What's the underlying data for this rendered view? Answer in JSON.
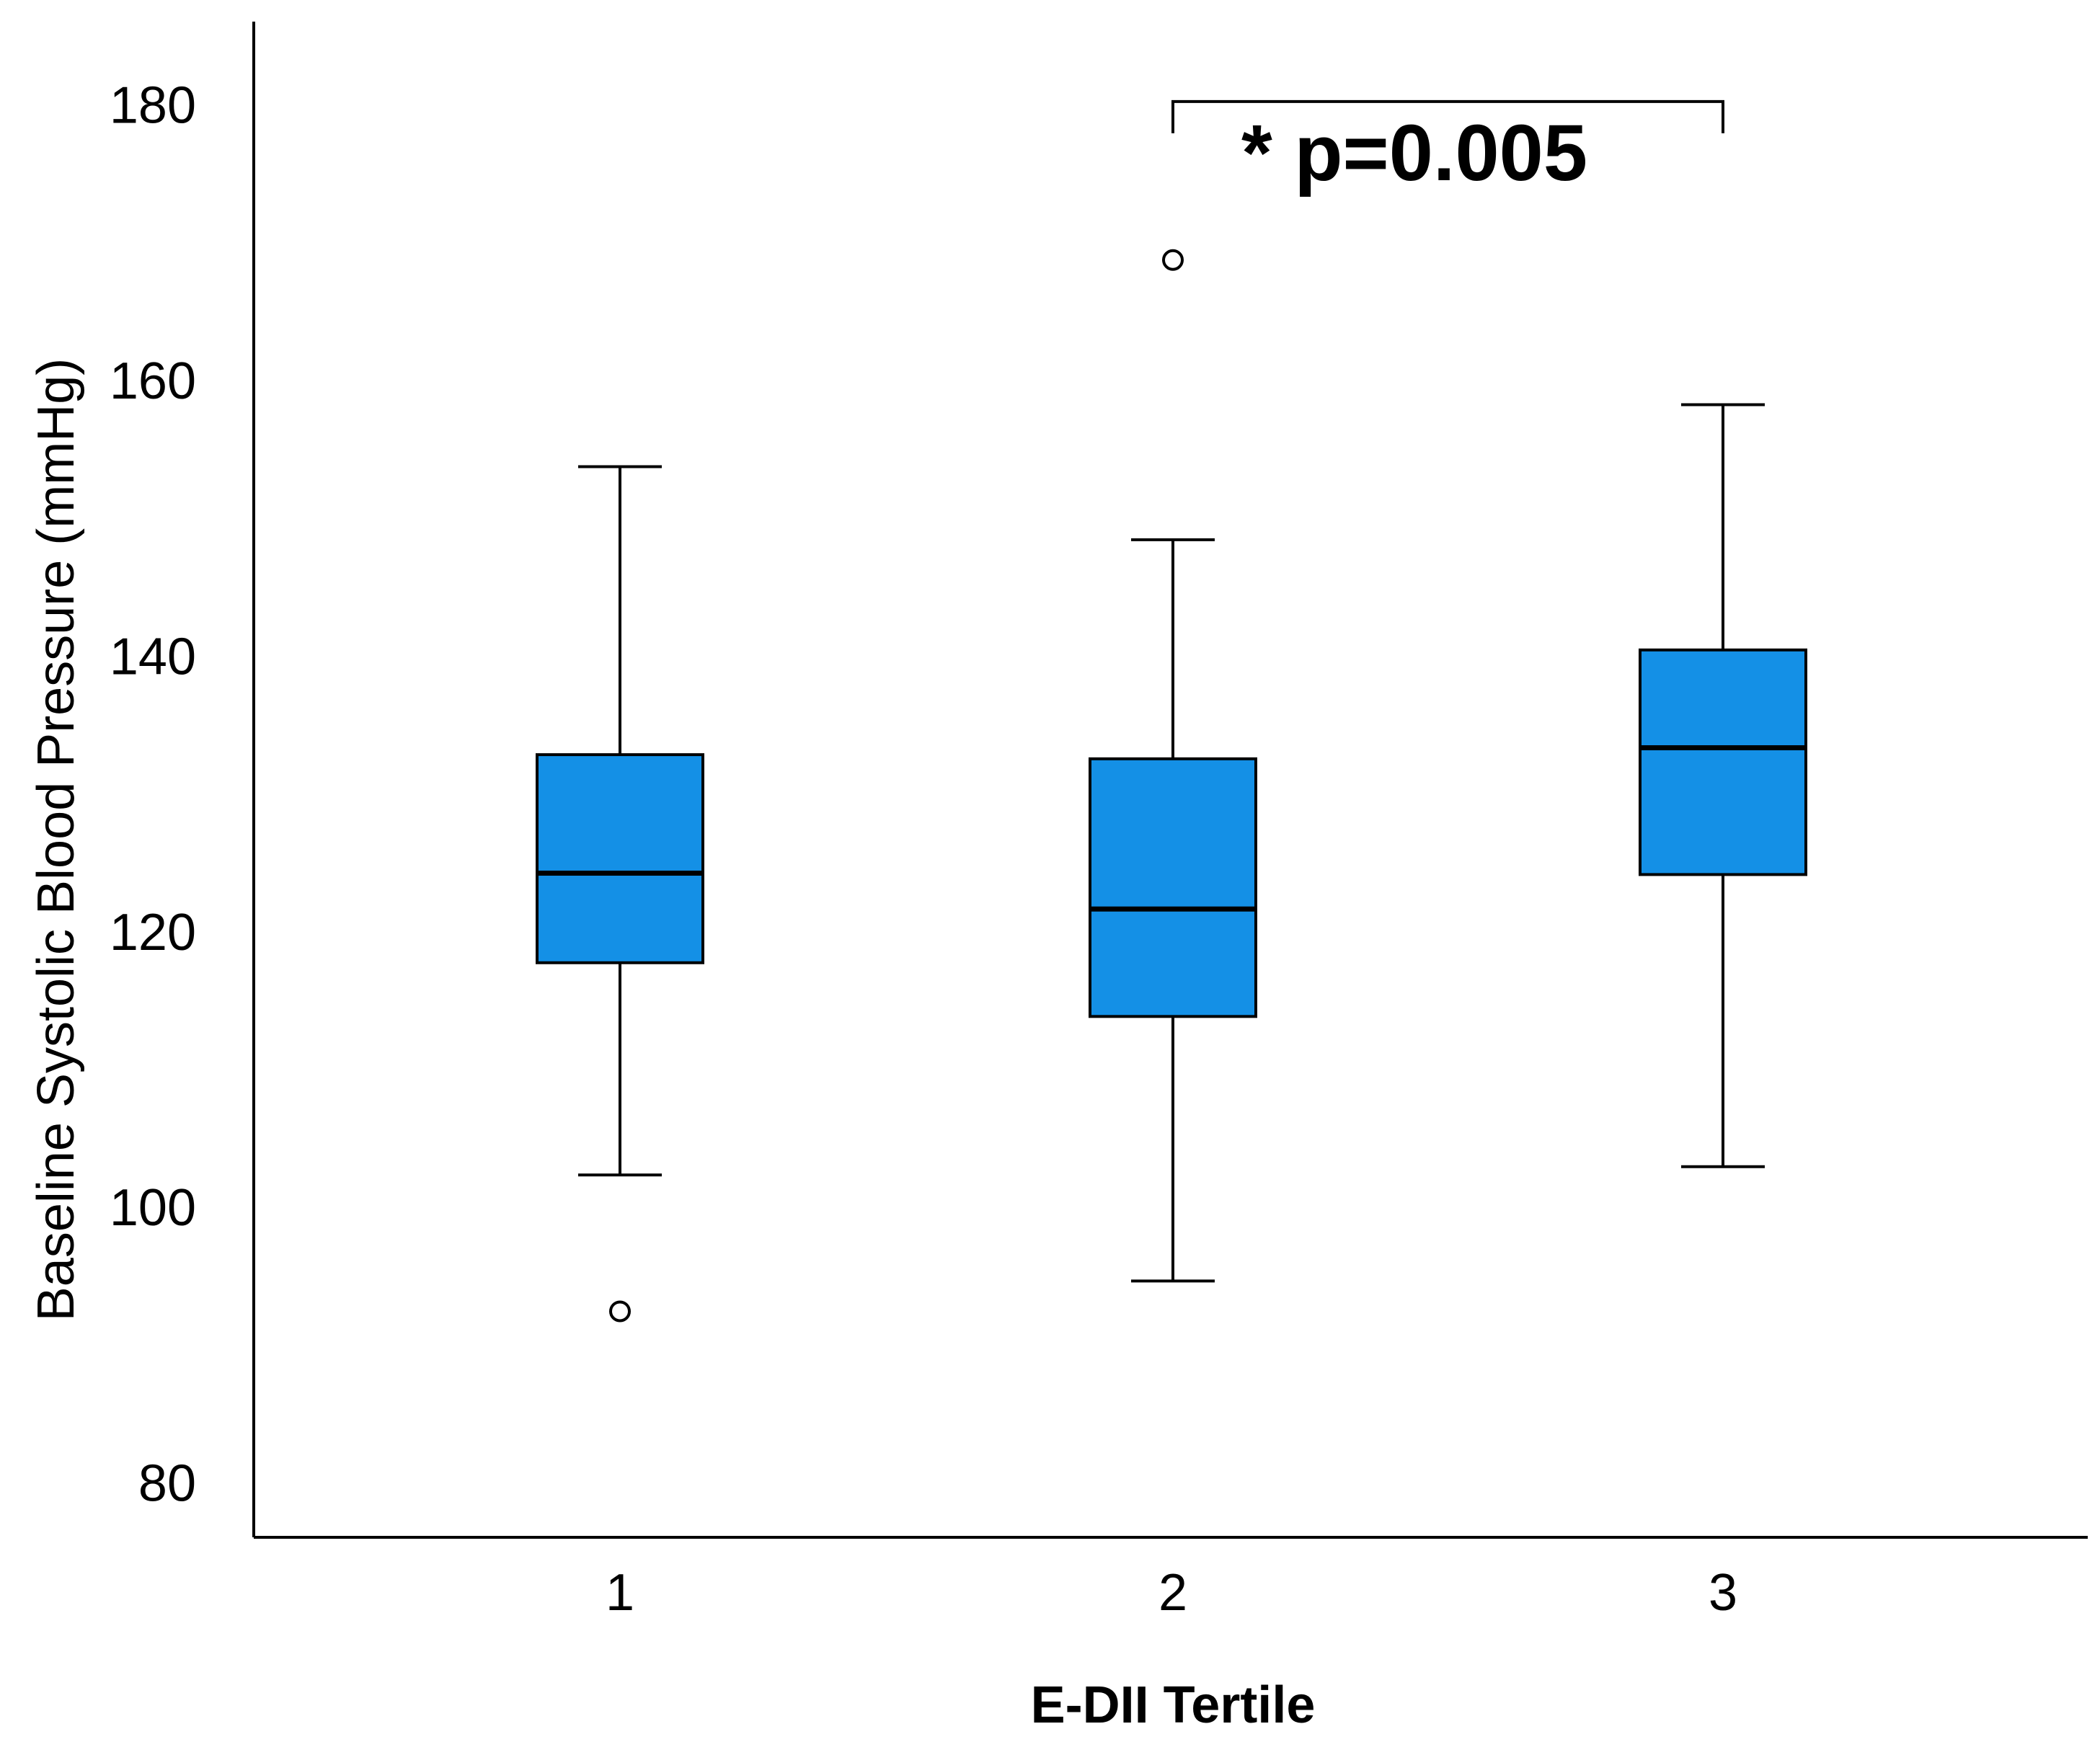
{
  "chart_data": {
    "type": "boxplot",
    "title": "",
    "xlabel": "E-DII Tertile",
    "ylabel": "Baseline Systolic Blood Pressure (mmHg)",
    "ylim": [
      76,
      186
    ],
    "yticks": [
      80,
      100,
      120,
      140,
      160,
      180
    ],
    "categories": [
      "1",
      "2",
      "3"
    ],
    "boxes": [
      {
        "category": "1",
        "whisker_low": 102.3,
        "q1": 117.7,
        "median": 124.2,
        "q3": 132.8,
        "whisker_high": 153.7,
        "outliers": [
          92.4
        ]
      },
      {
        "category": "2",
        "whisker_low": 94.6,
        "q1": 113.8,
        "median": 121.6,
        "q3": 132.5,
        "whisker_high": 148.4,
        "outliers": [
          168.7
        ]
      },
      {
        "category": "3",
        "whisker_low": 102.9,
        "q1": 124.1,
        "median": 133.3,
        "q3": 140.4,
        "whisker_high": 158.2,
        "outliers": []
      }
    ],
    "annotation": {
      "text": "* p=0.005",
      "from": "2",
      "to": "3",
      "bracket_value": 180.2
    },
    "colors": {
      "box_fill": "#1490e6",
      "stroke": "#000000"
    }
  }
}
